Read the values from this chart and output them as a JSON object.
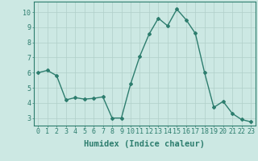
{
  "x": [
    0,
    1,
    2,
    3,
    4,
    5,
    6,
    7,
    8,
    9,
    10,
    11,
    12,
    13,
    14,
    15,
    16,
    17,
    18,
    19,
    20,
    21,
    22,
    23
  ],
  "y": [
    6.0,
    6.15,
    5.8,
    4.2,
    4.35,
    4.25,
    4.3,
    4.4,
    3.0,
    3.0,
    5.25,
    7.1,
    8.55,
    9.6,
    9.1,
    10.2,
    9.5,
    8.6,
    6.0,
    3.7,
    4.1,
    3.3,
    2.9,
    2.75
  ],
  "line_color": "#2d7d6e",
  "marker": "D",
  "marker_size": 2.0,
  "bg_color": "#cce8e3",
  "grid_color": "#b0cfc9",
  "xlabel": "Humidex (Indice chaleur)",
  "ylim": [
    2.5,
    10.7
  ],
  "xlim": [
    -0.5,
    23.5
  ],
  "yticks": [
    3,
    4,
    5,
    6,
    7,
    8,
    9,
    10
  ],
  "xticks": [
    0,
    1,
    2,
    3,
    4,
    5,
    6,
    7,
    8,
    9,
    10,
    11,
    12,
    13,
    14,
    15,
    16,
    17,
    18,
    19,
    20,
    21,
    22,
    23
  ],
  "tick_fontsize": 6.0,
  "xlabel_fontsize": 7.5,
  "axis_color": "#2d7d6e",
  "line_width": 1.0
}
